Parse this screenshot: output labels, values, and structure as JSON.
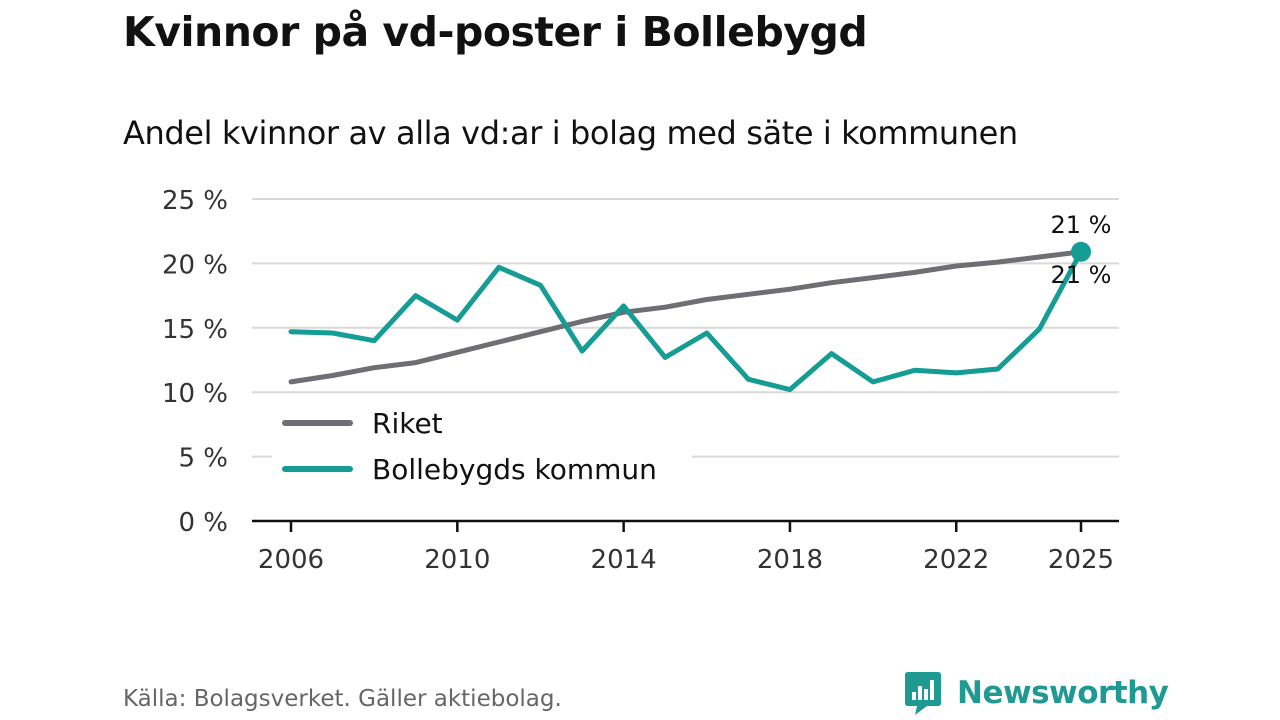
{
  "header": {
    "title": "Kvinnor på vd-poster i Bollebygd",
    "subtitle": "Andel kvinnor av alla vd:ar i bolag med säte i kommunen"
  },
  "footer": {
    "source": "Källa: Bolagsverket. Gäller aktiebolag.",
    "brand": "Newsworthy"
  },
  "colors": {
    "riket": "#6e6e73",
    "kommun": "#149c95",
    "grid": "#d9d9d9",
    "axis": "#111111",
    "brand": "#1f9a93"
  },
  "chart_data": {
    "type": "line",
    "title": "Kvinnor på vd-poster i Bollebygd",
    "subtitle": "Andel kvinnor av alla vd:ar i bolag med säte i kommunen",
    "xlabel": "",
    "ylabel": "",
    "x": [
      2006,
      2007,
      2008,
      2009,
      2010,
      2011,
      2012,
      2013,
      2014,
      2015,
      2016,
      2017,
      2018,
      2019,
      2020,
      2021,
      2022,
      2023,
      2024,
      2025
    ],
    "xlim": [
      2006,
      2025
    ],
    "ylim": [
      0,
      25
    ],
    "xticks": [
      2006,
      2010,
      2014,
      2018,
      2022,
      2025
    ],
    "yticks": [
      0,
      5,
      10,
      15,
      20,
      25
    ],
    "ytick_labels": [
      "0 %",
      "5 %",
      "10 %",
      "15 %",
      "20 %",
      "25 %"
    ],
    "grid": true,
    "legend_position": "bottom-left",
    "series": [
      {
        "name": "Riket",
        "color": "#6e6e73",
        "values": [
          10.8,
          11.3,
          11.9,
          12.3,
          13.1,
          13.9,
          14.7,
          15.5,
          16.2,
          16.6,
          17.2,
          17.6,
          18.0,
          18.5,
          18.9,
          19.3,
          19.8,
          20.1,
          20.5,
          20.9
        ],
        "end_label": "21 %"
      },
      {
        "name": "Bollebygds kommun",
        "color": "#149c95",
        "values": [
          14.7,
          14.6,
          14.0,
          17.5,
          15.6,
          19.7,
          18.3,
          13.2,
          16.7,
          12.7,
          14.6,
          11.0,
          10.2,
          13.0,
          10.8,
          11.7,
          11.5,
          11.8,
          14.9,
          20.9
        ],
        "end_label": "21 %"
      }
    ]
  }
}
